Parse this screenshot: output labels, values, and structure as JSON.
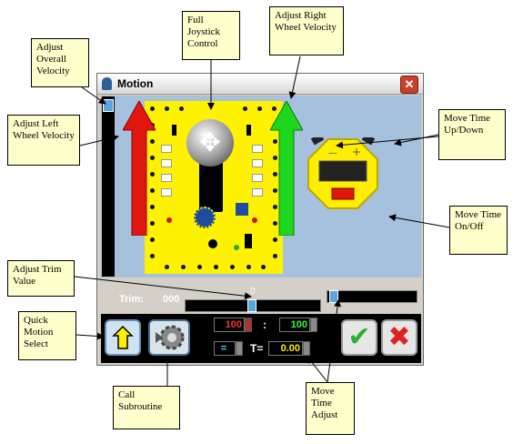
{
  "window": {
    "title": "Motion",
    "close_label": "✕"
  },
  "callouts": {
    "full_joystick": "Full Joystick Control",
    "adjust_right": "Adjust Right Wheel Velocity",
    "adjust_overall": "Adjust Overall Velocity",
    "adjust_left": "Adjust Left Wheel Velocity",
    "move_time_updown": "Move Time Up/Down",
    "move_time_onoff": "Move Time On/Off",
    "adjust_trim": "Adjust Trim Value",
    "quick_motion": "Quick Motion Select",
    "call_subroutine": "Call Subroutine",
    "move_time_adjust": "Move Time Adjust"
  },
  "trim": {
    "label": "Trim:",
    "value": "000",
    "center_label": "0"
  },
  "bottom": {
    "left_value": "100",
    "separator": ":",
    "right_value": "100",
    "op_value": "=",
    "time_label": "T=",
    "time_value": "0.00"
  },
  "icons": {
    "joystick": "joystick-icon",
    "stopwatch": "stopwatch-icon",
    "ok": "checkmark-icon",
    "cancel": "x-icon"
  },
  "colors": {
    "board": "#fff200",
    "panel": "#a6c1dd",
    "left_arrow": "#e0160f",
    "right_arrow": "#1ed61e"
  }
}
